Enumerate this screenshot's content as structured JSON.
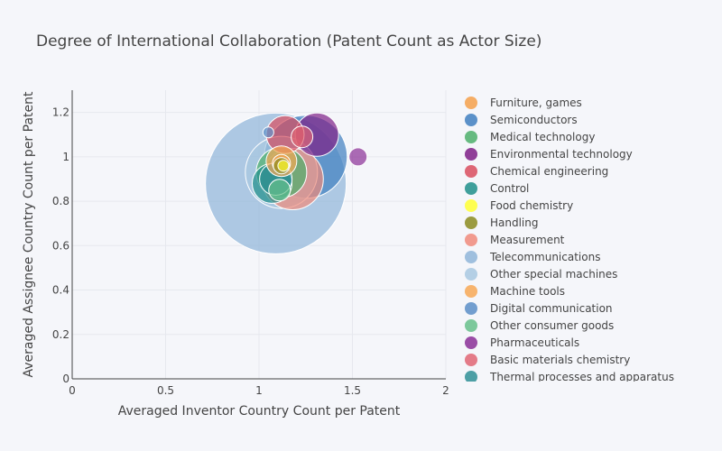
{
  "chart_data": {
    "type": "scatter",
    "title": "Degree of International Collaboration (Patent Count as Actor Size)",
    "xlabel": "Averaged Inventor Country Count per Patent",
    "ylabel": "Averaged Assignee Country Count per Patent",
    "xlim": [
      0,
      2
    ],
    "ylim": [
      0,
      1.3
    ],
    "x_ticks": [
      "0",
      "0.5",
      "1",
      "1.5",
      "2"
    ],
    "y_ticks": [
      "0",
      "0.2",
      "0.4",
      "0.6",
      "0.8",
      "1",
      "1.2"
    ],
    "grid": true,
    "legend_position": "right",
    "series": [
      {
        "name": "Furniture, games",
        "color": "#f5a04a",
        "points": [
          {
            "x": 1.12,
            "y": 0.97,
            "size": 10
          }
        ]
      },
      {
        "name": "Semiconductors",
        "color": "#3f7fbf",
        "points": [
          {
            "x": 1.25,
            "y": 1.0,
            "size": 46
          }
        ]
      },
      {
        "name": "Medical technology",
        "color": "#4caf6a",
        "points": [
          {
            "x": 1.12,
            "y": 0.93,
            "size": 28
          }
        ]
      },
      {
        "name": "Environmental technology",
        "color": "#7e1f86",
        "points": [
          {
            "x": 1.31,
            "y": 1.1,
            "size": 24
          }
        ]
      },
      {
        "name": "Chemical engineering",
        "color": "#d94d5e",
        "points": [
          {
            "x": 1.14,
            "y": 1.1,
            "size": 21
          }
        ]
      },
      {
        "name": "Control",
        "color": "#1f8f8a",
        "points": [
          {
            "x": 1.07,
            "y": 0.88,
            "size": 22
          }
        ]
      },
      {
        "name": "Food chemistry",
        "color": "#ffff33",
        "points": [
          {
            "x": 1.13,
            "y": 0.96,
            "size": 6
          }
        ]
      },
      {
        "name": "Handling",
        "color": "#8b8b1f",
        "points": [
          {
            "x": 1.12,
            "y": 0.96,
            "size": 9
          }
        ]
      },
      {
        "name": "Measurement",
        "color": "#f08a7a",
        "points": [
          {
            "x": 1.18,
            "y": 0.9,
            "size": 34
          }
        ]
      },
      {
        "name": "Telecommunications",
        "color": "#8fb5d8",
        "points": [
          {
            "x": 1.09,
            "y": 0.88,
            "size": 78
          }
        ]
      },
      {
        "name": "Other special machines",
        "color": "#a8c8e0",
        "points": [
          {
            "x": 1.12,
            "y": 0.93,
            "size": 40
          }
        ]
      },
      {
        "name": "Machine tools",
        "color": "#f7a855",
        "points": [
          {
            "x": 1.12,
            "y": 0.98,
            "size": 17
          }
        ]
      },
      {
        "name": "Digital communication",
        "color": "#5b8ec7",
        "points": [
          {
            "x": 1.05,
            "y": 1.11,
            "size": 6
          }
        ]
      },
      {
        "name": "Other consumer goods",
        "color": "#66c08a",
        "points": [
          {
            "x": 1.11,
            "y": 0.85,
            "size": 12
          }
        ]
      },
      {
        "name": "Pharmaceuticals",
        "color": "#8a2f96",
        "points": [
          {
            "x": 1.53,
            "y": 1.0,
            "size": 10
          }
        ]
      },
      {
        "name": "Basic materials chemistry",
        "color": "#e06573",
        "points": [
          {
            "x": 1.23,
            "y": 1.09,
            "size": 12
          }
        ]
      },
      {
        "name": "Thermal processes and apparatus",
        "color": "#2f8f95",
        "points": [
          {
            "x": 1.09,
            "y": 0.9,
            "size": 18
          }
        ]
      }
    ]
  }
}
